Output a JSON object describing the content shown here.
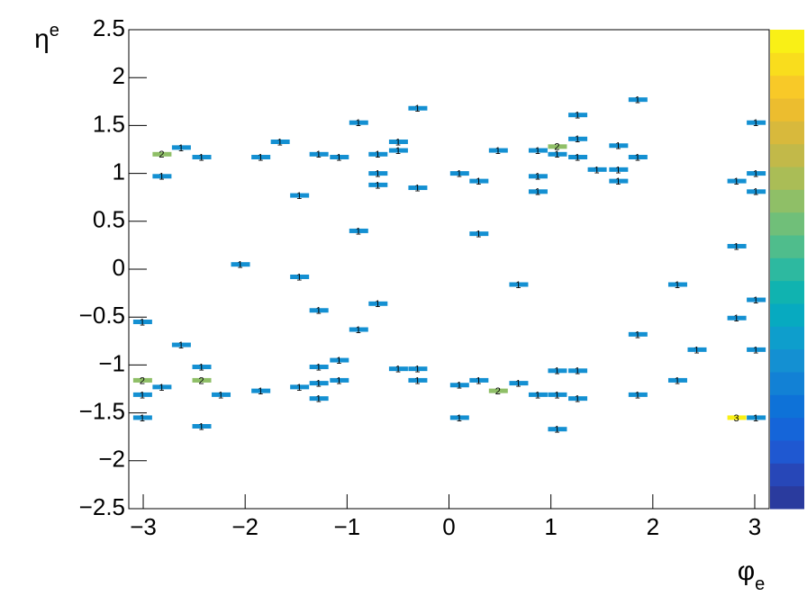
{
  "chart_data": {
    "type": "heatmap2d",
    "x_label": {
      "symbol": "φ",
      "subscript": "e"
    },
    "y_label": {
      "symbol": "η",
      "subscript": "e"
    },
    "xlim": [
      -3.1416,
      3.1416
    ],
    "ylim": [
      -2.5,
      2.5
    ],
    "xticks": [
      {
        "value": -3,
        "label": "−3"
      },
      {
        "value": -2,
        "label": "−2"
      },
      {
        "value": -1,
        "label": "−1"
      },
      0,
      1,
      2,
      3
    ],
    "yticks": [
      {
        "value": -2.5,
        "label": "−2.5"
      },
      {
        "value": -2,
        "label": "−2"
      },
      {
        "value": -1.5,
        "label": "−1.5"
      },
      {
        "value": -1,
        "label": "−1"
      },
      {
        "value": -0.5,
        "label": "−0.5"
      },
      0,
      0.5,
      1,
      1.5,
      2,
      2.5
    ],
    "zlim": [
      0,
      3.15
    ],
    "palette": [
      "#2a3b9e",
      "#2747b8",
      "#1f58d1",
      "#1565d9",
      "#0e72d8",
      "#1281d5",
      "#1490d2",
      "#0e9ecc",
      "#07aac0",
      "#10b3b0",
      "#2db9a0",
      "#4fbd8c",
      "#70bf79",
      "#8fbf67",
      "#aabd56",
      "#c2b949",
      "#d8b93c",
      "#ecbd2f",
      "#f8c928",
      "#f9dd1d",
      "#f9f016"
    ],
    "cells": {
      "x": [
        -2.82,
        -2.63,
        -2.82,
        -2.43,
        -3.01,
        -2.82,
        -3.01,
        -3.01,
        -3.01,
        -2.63,
        -2.43,
        -2.43,
        -2.24,
        -2.43,
        -2.05,
        -1.85,
        -1.85,
        -1.66,
        -1.47,
        -1.47,
        -1.47,
        -1.28,
        -1.28,
        -1.28,
        -1.28,
        -1.28,
        -1.08,
        -1.08,
        -1.08,
        -0.89,
        -0.89,
        -0.89,
        -0.7,
        -0.7,
        -0.7,
        -0.7,
        -0.5,
        -0.5,
        -0.5,
        -0.31,
        -0.31,
        -0.31,
        -0.31,
        0.1,
        0.1,
        0.1,
        0.29,
        0.29,
        0.29,
        0.48,
        0.48,
        0.68,
        0.68,
        0.87,
        0.87,
        0.87,
        0.87,
        1.06,
        1.06,
        1.06,
        1.06,
        1.06,
        1.26,
        1.26,
        1.26,
        1.26,
        1.26,
        1.45,
        1.66,
        1.66,
        1.66,
        1.85,
        1.85,
        1.85,
        1.85,
        2.24,
        2.24,
        2.43,
        2.82,
        2.82,
        2.82,
        2.82,
        3.01,
        3.01,
        3.01,
        3.01,
        3.01,
        3.01
      ],
      "y": [
        1.2,
        1.27,
        0.97,
        1.17,
        -1.16,
        -1.23,
        -1.31,
        -0.55,
        -1.55,
        -0.79,
        -1.02,
        -1.16,
        -1.31,
        -1.64,
        0.05,
        1.17,
        -1.27,
        1.33,
        0.77,
        -0.08,
        -1.23,
        1.2,
        -0.43,
        -1.02,
        -1.19,
        -1.35,
        1.17,
        -0.95,
        -1.16,
        1.53,
        0.4,
        -0.63,
        1.2,
        1.0,
        0.88,
        -0.36,
        1.33,
        1.24,
        -1.04,
        -1.04,
        1.68,
        0.85,
        -1.16,
        1.0,
        -1.21,
        -1.55,
        0.92,
        0.37,
        -1.16,
        1.24,
        -1.27,
        -0.16,
        -1.19,
        1.24,
        0.97,
        0.81,
        -1.31,
        1.28,
        1.2,
        -1.06,
        -1.31,
        -1.67,
        1.61,
        1.36,
        1.17,
        -1.06,
        -1.35,
        1.04,
        1.29,
        1.04,
        0.92,
        1.77,
        1.17,
        -0.68,
        -1.31,
        -0.16,
        -1.16,
        -0.84,
        0.92,
        0.24,
        -0.51,
        -1.55,
        1.53,
        1.0,
        0.81,
        -0.32,
        -0.84,
        -1.55
      ],
      "values": [
        2,
        1,
        1,
        1,
        2,
        1,
        1,
        1,
        1,
        1,
        1,
        2,
        1,
        1,
        1,
        1,
        1,
        1,
        1,
        1,
        1,
        1,
        1,
        1,
        1,
        1,
        1,
        1,
        1,
        1,
        1,
        1,
        1,
        1,
        1,
        1,
        1,
        1,
        1,
        1,
        1,
        1,
        1,
        1,
        1,
        1,
        1,
        1,
        1,
        1,
        2,
        1,
        1,
        1,
        1,
        1,
        1,
        2,
        1,
        1,
        1,
        1,
        1,
        1,
        1,
        1,
        1,
        1,
        1,
        1,
        1,
        1,
        1,
        1,
        1,
        1,
        1,
        1,
        1,
        1,
        1,
        3,
        1,
        1,
        1,
        1,
        1,
        1
      ]
    }
  }
}
